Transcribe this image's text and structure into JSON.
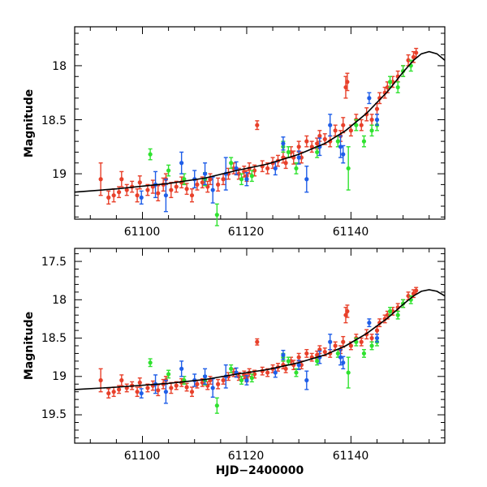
{
  "chart_data": [
    {
      "type": "scatter",
      "panel": "top",
      "title": "",
      "xlabel": "",
      "ylabel": "Magnitude",
      "xlim": [
        61087,
        61158
      ],
      "ylim": [
        19.42,
        17.64
      ],
      "y_inverted": true,
      "xticks": [
        61100,
        61120,
        61140
      ],
      "xtick_labels": [
        "61100",
        "61120",
        "61140"
      ],
      "yticks": [
        18,
        18.5,
        19
      ],
      "ytick_labels": [
        "18",
        "18.5",
        "19"
      ],
      "x_minor_step": 5,
      "y_minor_step": 0.1
    },
    {
      "type": "scatter",
      "panel": "bottom",
      "title": "",
      "xlabel": "HJD−2400000",
      "ylabel": "Magnitude",
      "xlim": [
        61087,
        61158
      ],
      "ylim": [
        19.87,
        17.33
      ],
      "y_inverted": true,
      "xticks": [
        61100,
        61120,
        61140
      ],
      "xtick_labels": [
        "61100",
        "61120",
        "61140"
      ],
      "yticks": [
        17.5,
        18,
        18.5,
        19,
        19.5
      ],
      "ytick_labels": [
        "17.5",
        "18",
        "18.5",
        "19",
        "19.5"
      ],
      "x_minor_step": 5,
      "y_minor_step": 0.1
    }
  ],
  "model_curve": {
    "x": [
      61087,
      61095,
      61105,
      61112,
      61118,
      61124,
      61130,
      61135,
      61139,
      61143,
      61147,
      61150,
      61152,
      61153.5,
      61155,
      61156.5,
      61158
    ],
    "y": [
      19.17,
      19.14,
      19.09,
      19.04,
      18.97,
      18.91,
      18.82,
      18.72,
      18.6,
      18.44,
      18.24,
      18.06,
      17.95,
      17.89,
      17.87,
      17.89,
      17.95
    ]
  },
  "series_colors": {
    "red": "#e8402a",
    "green": "#2fe22f",
    "blue": "#1f5ee8",
    "curve": "#000000"
  },
  "series": [
    {
      "name": "red",
      "points": [
        [
          61092.0,
          19.05,
          0.15
        ],
        [
          61093.5,
          19.22,
          0.06
        ],
        [
          61094.5,
          19.2,
          0.06
        ],
        [
          61095.5,
          19.17,
          0.05
        ],
        [
          61096.0,
          19.05,
          0.07
        ],
        [
          61097.0,
          19.15,
          0.05
        ],
        [
          61098.0,
          19.12,
          0.05
        ],
        [
          61099.0,
          19.2,
          0.06
        ],
        [
          61099.5,
          19.08,
          0.06
        ],
        [
          61101.0,
          19.15,
          0.05
        ],
        [
          61102.0,
          19.12,
          0.06
        ],
        [
          61103.0,
          19.18,
          0.07
        ],
        [
          61104.0,
          19.1,
          0.06
        ],
        [
          61104.5,
          19.05,
          0.05
        ],
        [
          61105.5,
          19.15,
          0.07
        ],
        [
          61106.5,
          19.12,
          0.05
        ],
        [
          61107.5,
          19.08,
          0.05
        ],
        [
          61108.5,
          19.14,
          0.05
        ],
        [
          61109.5,
          19.2,
          0.06
        ],
        [
          61110.5,
          19.1,
          0.05
        ],
        [
          61111.5,
          19.08,
          0.05
        ],
        [
          61112.5,
          19.12,
          0.05
        ],
        [
          61113.0,
          19.05,
          0.05
        ],
        [
          61114.5,
          19.1,
          0.06
        ],
        [
          61115.5,
          19.05,
          0.05
        ],
        [
          61116.5,
          19.0,
          0.05
        ],
        [
          61117.5,
          18.95,
          0.05
        ],
        [
          61118.5,
          19.0,
          0.05
        ],
        [
          61119.5,
          18.98,
          0.05
        ],
        [
          61120.0,
          19.02,
          0.05
        ],
        [
          61120.5,
          18.95,
          0.05
        ],
        [
          61121.5,
          18.97,
          0.05
        ],
        [
          61122.0,
          18.55,
          0.04
        ],
        [
          61123.0,
          18.93,
          0.05
        ],
        [
          61124.0,
          18.95,
          0.05
        ],
        [
          61125.0,
          18.9,
          0.05
        ],
        [
          61126.0,
          18.88,
          0.05
        ],
        [
          61127.0,
          18.85,
          0.05
        ],
        [
          61127.5,
          18.9,
          0.05
        ],
        [
          61128.5,
          18.8,
          0.05
        ],
        [
          61129.0,
          18.85,
          0.06
        ],
        [
          61130.0,
          18.75,
          0.05
        ],
        [
          61130.5,
          18.85,
          0.05
        ],
        [
          61131.5,
          18.7,
          0.05
        ],
        [
          61132.5,
          18.75,
          0.05
        ],
        [
          61133.5,
          18.72,
          0.05
        ],
        [
          61134.0,
          18.65,
          0.05
        ],
        [
          61135.0,
          18.68,
          0.05
        ],
        [
          61136.0,
          18.7,
          0.05
        ],
        [
          61137.0,
          18.6,
          0.05
        ],
        [
          61138.0,
          18.65,
          0.05
        ],
        [
          61138.5,
          18.55,
          0.07
        ],
        [
          61139.0,
          18.2,
          0.1
        ],
        [
          61139.3,
          18.15,
          0.08
        ],
        [
          61140.0,
          18.6,
          0.05
        ],
        [
          61141.0,
          18.5,
          0.05
        ],
        [
          61142.0,
          18.55,
          0.05
        ],
        [
          61143.0,
          18.45,
          0.06
        ],
        [
          61144.0,
          18.5,
          0.05
        ],
        [
          61145.0,
          18.4,
          0.05
        ],
        [
          61145.5,
          18.3,
          0.05
        ],
        [
          61146.5,
          18.25,
          0.05
        ],
        [
          61147.0,
          18.2,
          0.05
        ],
        [
          61148.0,
          18.15,
          0.05
        ],
        [
          61149.0,
          18.1,
          0.05
        ],
        [
          61150.0,
          18.05,
          0.05
        ],
        [
          61151.0,
          17.95,
          0.05
        ],
        [
          61152.0,
          17.92,
          0.05
        ],
        [
          61152.5,
          17.88,
          0.04
        ]
      ]
    },
    {
      "name": "green",
      "points": [
        [
          61101.5,
          18.82,
          0.05
        ],
        [
          61105.0,
          18.97,
          0.05
        ],
        [
          61108.0,
          19.05,
          0.05
        ],
        [
          61112.0,
          19.05,
          0.06
        ],
        [
          61114.3,
          19.38,
          0.1
        ],
        [
          61117.0,
          18.9,
          0.05
        ],
        [
          61119.0,
          19.05,
          0.05
        ],
        [
          61121.0,
          19.02,
          0.05
        ],
        [
          61127.0,
          18.75,
          0.05
        ],
        [
          61128.0,
          18.8,
          0.05
        ],
        [
          61129.5,
          18.95,
          0.05
        ],
        [
          61133.5,
          18.8,
          0.05
        ],
        [
          61137.5,
          18.7,
          0.05
        ],
        [
          61139.5,
          18.95,
          0.2
        ],
        [
          61141.0,
          18.55,
          0.05
        ],
        [
          61142.5,
          18.7,
          0.05
        ],
        [
          61144.0,
          18.6,
          0.05
        ],
        [
          61145.0,
          18.55,
          0.05
        ],
        [
          61147.5,
          18.15,
          0.05
        ],
        [
          61149.0,
          18.2,
          0.05
        ],
        [
          61150.0,
          18.05,
          0.05
        ],
        [
          61151.5,
          18.0,
          0.05
        ]
      ]
    },
    {
      "name": "blue",
      "points": [
        [
          61099.8,
          19.22,
          0.06
        ],
        [
          61102.5,
          19.1,
          0.12
        ],
        [
          61104.5,
          19.2,
          0.15
        ],
        [
          61107.5,
          18.9,
          0.1
        ],
        [
          61110.0,
          19.05,
          0.08
        ],
        [
          61112.0,
          19.0,
          0.1
        ],
        [
          61113.5,
          19.15,
          0.12
        ],
        [
          61116.0,
          19.0,
          0.15
        ],
        [
          61118.0,
          18.95,
          0.06
        ],
        [
          61120.0,
          19.05,
          0.06
        ],
        [
          61125.5,
          18.95,
          0.06
        ],
        [
          61127.0,
          18.72,
          0.06
        ],
        [
          61130.0,
          18.85,
          0.06
        ],
        [
          61131.5,
          19.05,
          0.12
        ],
        [
          61134.0,
          18.75,
          0.08
        ],
        [
          61136.0,
          18.55,
          0.1
        ],
        [
          61138.0,
          18.75,
          0.1
        ],
        [
          61138.5,
          18.82,
          0.08
        ],
        [
          61143.5,
          18.3,
          0.05
        ],
        [
          61145.0,
          18.5,
          0.05
        ]
      ]
    }
  ]
}
